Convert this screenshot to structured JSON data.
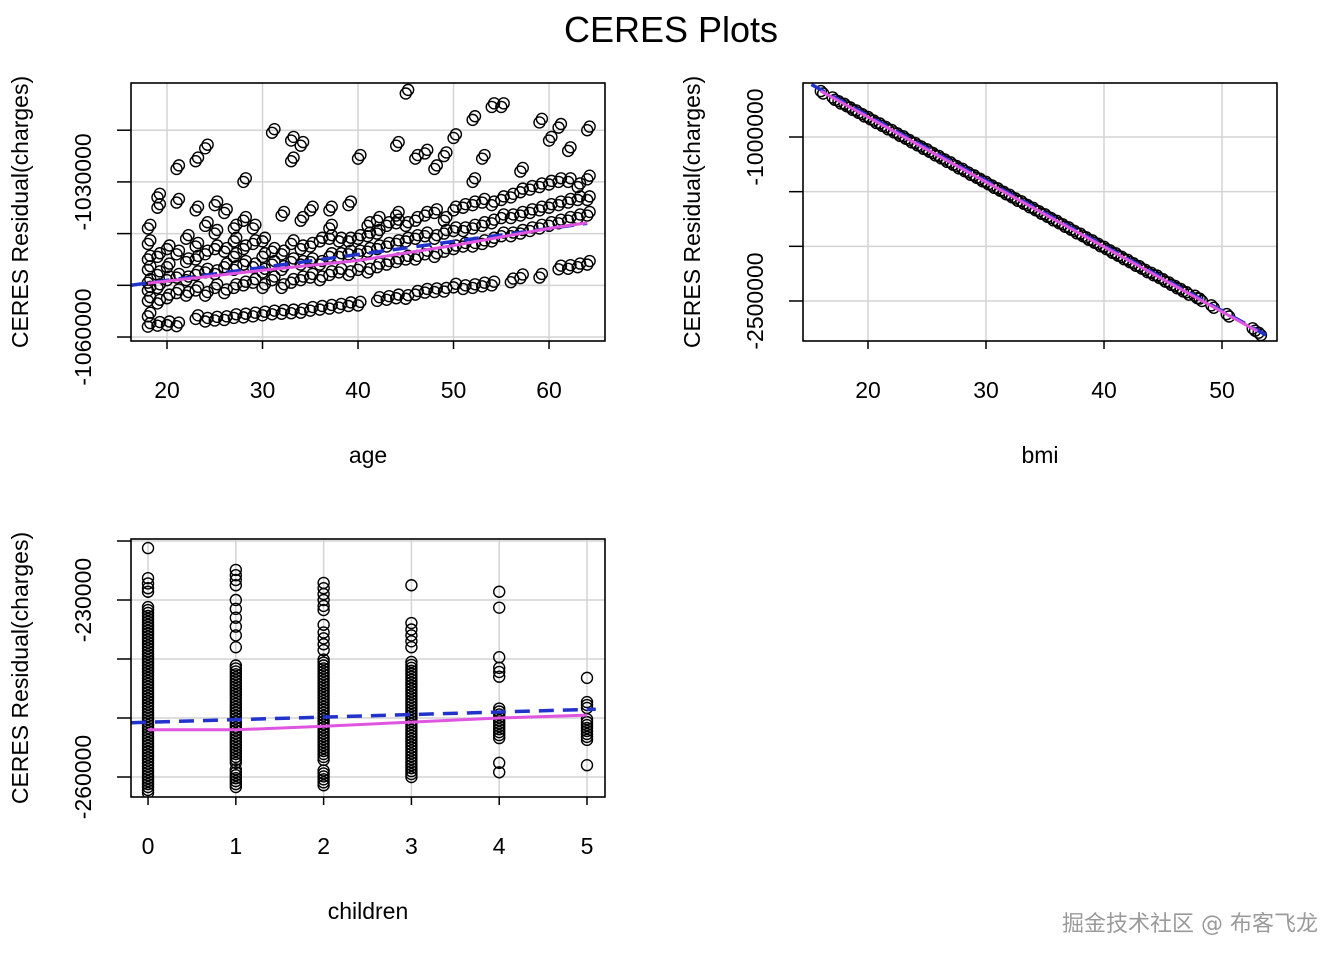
{
  "title": "CERES Plots",
  "watermark": "掘金技术社区 @ 布客飞龙",
  "colors": {
    "linear_fit": "#2233cc",
    "smooth_fit": "#e055e0",
    "grid": "#d3d3d3",
    "points": "#000000"
  },
  "chart_data": [
    {
      "type": "scatter",
      "xlabel": "age",
      "ylabel": "CERES Residual(charges)",
      "xlim": [
        16.23,
        65.86
      ],
      "ylim": [
        -1060770,
        -1010870
      ],
      "xticks": [
        {
          "value": 20,
          "label": "20"
        },
        {
          "value": 30,
          "label": "30"
        },
        {
          "value": 40,
          "label": "40"
        },
        {
          "value": 50,
          "label": "50"
        },
        {
          "value": 60,
          "label": "60"
        }
      ],
      "yticks": [
        -1060000,
        -1050000,
        -1040000,
        -1030000,
        -1020000
      ],
      "yticks_labeled": [
        {
          "value": -1060000,
          "label": "-1060000"
        },
        {
          "value": -1030000,
          "label": "-1030000"
        }
      ],
      "rows": [
        [
          18,
          -1058000,
          -1056000,
          -1053000,
          -1051000,
          -1049500,
          -1047000,
          -1045000,
          -1042000,
          -1039000
        ],
        [
          19,
          -1057800,
          -1053500,
          -1050500,
          -1048000,
          -1044500,
          -1035000,
          -1033000
        ],
        [
          20,
          -1057700,
          -1052500,
          -1049000,
          -1046500,
          -1043000
        ],
        [
          21,
          -1057900,
          -1051500,
          -1048500,
          -1044000,
          -1034000,
          -1027500
        ],
        [
          22,
          -1052000,
          -1049000,
          -1045500,
          -1041000
        ],
        [
          23,
          -1056500,
          -1051000,
          -1048000,
          -1045000,
          -1042500,
          -1035500,
          -1026000
        ],
        [
          24,
          -1057000,
          -1052000,
          -1047500,
          -1044000,
          -1038500,
          -1023500
        ],
        [
          25,
          -1056800,
          -1050500,
          -1047800,
          -1043000,
          -1040000,
          -1034500
        ],
        [
          26,
          -1056700,
          -1051500,
          -1046500,
          -1043500,
          -1036000
        ],
        [
          27,
          -1056300,
          -1050500,
          -1047000,
          -1044500,
          -1041500,
          -1039000
        ],
        [
          28,
          -1056200,
          -1050000,
          -1046000,
          -1043000,
          -1037500,
          -1030000
        ],
        [
          29,
          -1056000,
          -1049500,
          -1046500,
          -1042000,
          -1039000
        ],
        [
          30,
          -1055800,
          -1050500,
          -1047500,
          -1044500,
          -1041500
        ],
        [
          31,
          -1055600,
          -1049000,
          -1046000,
          -1043500,
          -1020500
        ],
        [
          32,
          -1055500,
          -1050500,
          -1047000,
          -1044000,
          -1036500
        ],
        [
          33,
          -1055400,
          -1049500,
          -1045500,
          -1042000,
          -1026000,
          -1022000
        ],
        [
          34,
          -1055300,
          -1049000,
          -1046000,
          -1043000,
          -1037500,
          -1023000
        ],
        [
          35,
          -1054900,
          -1048500,
          -1045500,
          -1042500,
          -1035500
        ],
        [
          36,
          -1054700,
          -1049000,
          -1046000,
          -1041500
        ],
        [
          37,
          -1054500,
          -1048000,
          -1044500,
          -1041000,
          -1039000,
          -1035500
        ],
        [
          38,
          -1054300,
          -1047500,
          -1044500,
          -1041500
        ],
        [
          39,
          -1054000,
          -1048000,
          -1044000,
          -1041500,
          -1034500
        ],
        [
          40,
          -1053900,
          -1047000,
          -1044000,
          -1041000,
          -1025500
        ],
        [
          41,
          -1047500,
          -1043500,
          -1040500,
          -1038500
        ],
        [
          42,
          -1053000,
          -1046500,
          -1043000,
          -1040000,
          -1037500
        ],
        [
          43,
          -1052800,
          -1046000,
          -1042500,
          -1038500
        ],
        [
          44,
          -1052500,
          -1045500,
          -1042000,
          -1038000,
          -1036500,
          -1023000
        ],
        [
          45,
          -1052600,
          -1045000,
          -1041500,
          -1038500,
          -1012900
        ],
        [
          46,
          -1051800,
          -1045000,
          -1041000,
          -1037500,
          -1025500
        ],
        [
          47,
          -1051400,
          -1044000,
          -1040500,
          -1036500,
          -1024500
        ],
        [
          48,
          -1051300,
          -1044500,
          -1041000,
          -1036000,
          -1027500
        ],
        [
          49,
          -1051200,
          -1043500,
          -1040000,
          -1037500,
          -1025000
        ],
        [
          50,
          -1050400,
          -1043000,
          -1039500,
          -1035500,
          -1021500
        ],
        [
          51,
          -1050700,
          -1042500,
          -1039500,
          -1035000
        ],
        [
          52,
          -1050500,
          -1042500,
          -1039000,
          -1034500,
          -1030000,
          -1018000
        ],
        [
          53,
          -1050200,
          -1042000,
          -1038500,
          -1034000,
          -1025500
        ],
        [
          54,
          -1050000,
          -1041500,
          -1038000,
          -1034500,
          -1015500
        ],
        [
          55,
          -1040500,
          -1037000,
          -1033500,
          -1015500
        ],
        [
          56,
          -1049400,
          -1040500,
          -1037000,
          -1033000
        ],
        [
          57,
          -1048600,
          -1040000,
          -1036500,
          -1032000,
          -1028000
        ],
        [
          58,
          -1039500,
          -1036000,
          -1031500
        ],
        [
          59,
          -1048500,
          -1039000,
          -1035500,
          -1031000,
          -1018500
        ],
        [
          60,
          -1038500,
          -1035000,
          -1030500,
          -1022000
        ],
        [
          61,
          -1046900,
          -1038000,
          -1034500,
          -1030000,
          -1019500
        ],
        [
          62,
          -1046800,
          -1037500,
          -1034000,
          -1030000,
          -1024000
        ],
        [
          63,
          -1046500,
          -1037000,
          -1033500,
          -1031000
        ],
        [
          64,
          -1046000,
          -1036500,
          -1033500,
          -1029500,
          -1020000
        ]
      ],
      "linear_fit": [
        [
          16.23,
          -1050000
        ],
        [
          64,
          -1038000
        ]
      ],
      "smooth_fit": [
        [
          18,
          -1049600
        ],
        [
          30,
          -1047100
        ],
        [
          40,
          -1045200
        ],
        [
          50,
          -1042300
        ],
        [
          60,
          -1039000
        ],
        [
          64,
          -1037900
        ]
      ]
    },
    {
      "type": "scatter",
      "xlabel": "bmi",
      "ylabel": "CERES Residual(charges)",
      "xlim": [
        14.49,
        54.66
      ],
      "ylim": [
        -2866000,
        -506000
      ],
      "xticks": [
        {
          "value": 20,
          "label": "20"
        },
        {
          "value": 30,
          "label": "30"
        },
        {
          "value": 40,
          "label": "40"
        },
        {
          "value": 50,
          "label": "50"
        }
      ],
      "yticks": [
        -1000000,
        -1500000,
        -2000000,
        -2500000
      ],
      "yticks_labeled": [
        {
          "value": -1000000,
          "label": "-1000000"
        },
        {
          "value": -2500000,
          "label": "-2500000"
        }
      ],
      "points": [
        [
          16,
          -580000
        ],
        [
          17,
          -638000
        ],
        [
          17.5,
          -672000
        ],
        [
          18,
          -697000
        ],
        [
          18.5,
          -730000
        ],
        [
          19,
          -757000
        ],
        [
          19.5,
          -790000
        ],
        [
          20,
          -816000
        ],
        [
          20.5,
          -850000
        ],
        [
          21,
          -876000
        ],
        [
          21.5,
          -908000
        ],
        [
          22,
          -935000
        ],
        [
          22.5,
          -968000
        ],
        [
          23,
          -994000
        ],
        [
          23.5,
          -1027000
        ],
        [
          24,
          -1054000
        ],
        [
          24.5,
          -1086000
        ],
        [
          25,
          -1113000
        ],
        [
          25.5,
          -1146000
        ],
        [
          26,
          -1173000
        ],
        [
          26.5,
          -1205000
        ],
        [
          27,
          -1232000
        ],
        [
          27.5,
          -1265000
        ],
        [
          28,
          -1291000
        ],
        [
          28.5,
          -1324000
        ],
        [
          29,
          -1351000
        ],
        [
          29.5,
          -1383000
        ],
        [
          30,
          -1410000
        ],
        [
          30.5,
          -1443000
        ],
        [
          31,
          -1470000
        ],
        [
          31.5,
          -1502000
        ],
        [
          32,
          -1529000
        ],
        [
          32.5,
          -1562000
        ],
        [
          33,
          -1588000
        ],
        [
          33.5,
          -1621000
        ],
        [
          34,
          -1648000
        ],
        [
          34.5,
          -1680000
        ],
        [
          35,
          -1707000
        ],
        [
          35.5,
          -1740000
        ],
        [
          36,
          -1767000
        ],
        [
          36.5,
          -1799000
        ],
        [
          37,
          -1826000
        ],
        [
          37.5,
          -1859000
        ],
        [
          38,
          -1885000
        ],
        [
          38.5,
          -1918000
        ],
        [
          39,
          -1945000
        ],
        [
          39.5,
          -1977000
        ],
        [
          40,
          -2004000
        ],
        [
          40.5,
          -2037000
        ],
        [
          41,
          -2064000
        ],
        [
          41.5,
          -2096000
        ],
        [
          42,
          -2123000
        ],
        [
          42.5,
          -2156000
        ],
        [
          43,
          -2182000
        ],
        [
          43.5,
          -2215000
        ],
        [
          44,
          -2242000
        ],
        [
          44.5,
          -2268000
        ],
        [
          45,
          -2301000
        ],
        [
          45.5,
          -2330000
        ],
        [
          46,
          -2361000
        ],
        [
          46.5,
          -2390000
        ],
        [
          47,
          -2420000
        ],
        [
          47.7,
          -2452000
        ],
        [
          48.1,
          -2478000
        ],
        [
          49.1,
          -2540000
        ],
        [
          50.4,
          -2620000
        ],
        [
          52.6,
          -2750000
        ],
        [
          53.1,
          -2790000
        ]
      ],
      "linear_fit": [
        [
          15.2,
          -520000
        ],
        [
          54.4,
          -2850000
        ]
      ],
      "smooth_fit": [
        [
          16,
          -580000
        ],
        [
          53,
          -2776000
        ]
      ]
    },
    {
      "type": "scatter",
      "xlabel": "children",
      "ylabel": "CERES Residual(charges)",
      "xlim": [
        -0.194,
        5.205
      ],
      "ylim": [
        -263390,
        -219660
      ],
      "xticks": [
        {
          "value": 0,
          "label": "0"
        },
        {
          "value": 1,
          "label": "1"
        },
        {
          "value": 2,
          "label": "2"
        },
        {
          "value": 3,
          "label": "3"
        },
        {
          "value": 4,
          "label": "4"
        },
        {
          "value": 5,
          "label": "5"
        }
      ],
      "yticks": [
        -220000,
        -230000,
        -240000,
        -250000,
        -260000
      ],
      "yticks_labeled": [
        {
          "value": -230000,
          "label": "-230000"
        },
        {
          "value": -260000,
          "label": "-260000"
        }
      ],
      "groups": [
        {
          "x": 0,
          "dense": [
            [
              -262700,
              -231200
            ]
          ],
          "points": [
            -221200,
            -226300,
            -227200,
            -228000,
            -228600
          ]
        },
        {
          "x": 1,
          "dense": [
            [
              -261700,
              -258500
            ],
            [
              -257600,
              -240700
            ]
          ],
          "points": [
            -224900,
            -225800,
            -226600,
            -227500,
            -230000,
            -231500,
            -233000,
            -234500,
            -236000,
            -238000
          ]
        },
        {
          "x": 2,
          "dense": [
            [
              -261400,
              -258800
            ],
            [
              -257100,
              -239700
            ]
          ],
          "points": [
            -227100,
            -228000,
            -229000,
            -230000,
            -231000,
            -231700,
            -234200,
            -235500,
            -236500,
            -237500,
            -238500
          ]
        },
        {
          "x": 3,
          "dense": [
            [
              -260000,
              -240200
            ]
          ],
          "points": [
            -227500,
            -233900,
            -235000,
            -236000,
            -237000,
            -238000
          ]
        },
        {
          "x": 4,
          "dense": [
            [
              -253400,
              -248100
            ]
          ],
          "points": [
            -228600,
            -231300,
            -239700,
            -241500,
            -242200,
            -243000,
            -257600,
            -259200
          ]
        },
        {
          "x": 5,
          "dense": [
            [
              -253700,
              -249800
            ]
          ],
          "points": [
            -243200,
            -247300,
            -247800,
            -248300,
            -258000
          ]
        }
      ],
      "linear_fit": [
        [
          -0.194,
          -250800
        ],
        [
          5.1,
          -248500
        ]
      ],
      "smooth_fit": [
        [
          0,
          -252000
        ],
        [
          1,
          -252000
        ],
        [
          2,
          -251400
        ],
        [
          3,
          -250700
        ],
        [
          4,
          -250000
        ],
        [
          5,
          -249500
        ]
      ]
    }
  ]
}
